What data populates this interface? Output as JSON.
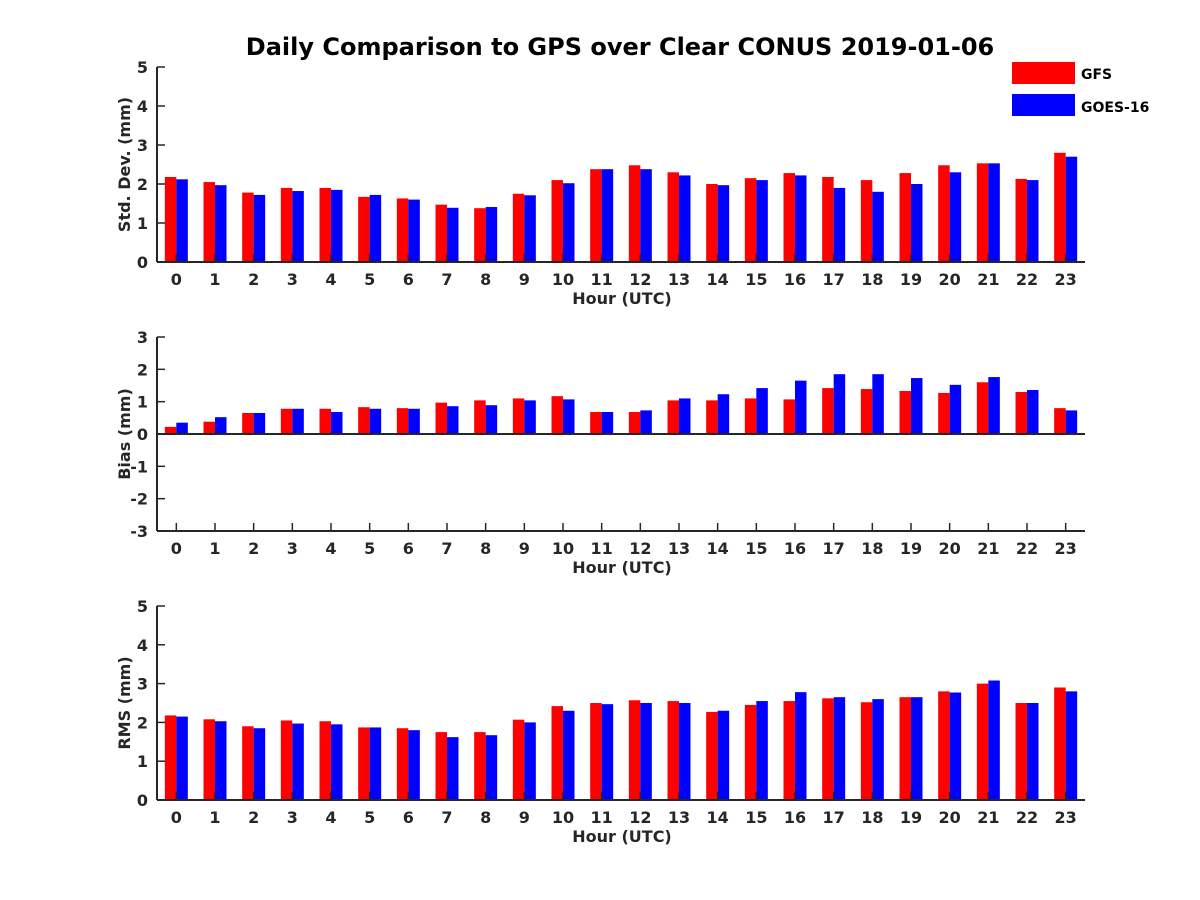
{
  "title": "Daily Comparison to GPS over Clear CONUS 2019-01-06",
  "legend": [
    {
      "label": "GFS",
      "color": "#ff0000"
    },
    {
      "label": "GOES-16",
      "color": "#0000ff"
    }
  ],
  "chart_data": [
    {
      "type": "bar",
      "title": "Daily Comparison to GPS over Clear CONUS 2019-01-06",
      "xlabel": "Hour (UTC)",
      "ylabel": "Std. Dev. (mm)",
      "ylim": [
        0,
        5
      ],
      "yticks": [
        "0",
        "1",
        "2",
        "3",
        "4",
        "5"
      ],
      "categories": [
        "0",
        "1",
        "2",
        "3",
        "4",
        "5",
        "6",
        "7",
        "8",
        "9",
        "10",
        "11",
        "12",
        "13",
        "14",
        "15",
        "16",
        "17",
        "18",
        "19",
        "20",
        "21",
        "22",
        "23"
      ],
      "series": [
        {
          "name": "GFS",
          "values": [
            2.18,
            2.05,
            1.78,
            1.9,
            1.9,
            1.67,
            1.63,
            1.47,
            1.38,
            1.75,
            2.1,
            2.38,
            2.48,
            2.3,
            2.0,
            2.15,
            2.28,
            2.18,
            2.1,
            2.28,
            2.48,
            2.53,
            2.13,
            2.8
          ]
        },
        {
          "name": "GOES-16",
          "values": [
            2.12,
            1.97,
            1.72,
            1.82,
            1.85,
            1.72,
            1.6,
            1.39,
            1.41,
            1.71,
            2.02,
            2.38,
            2.38,
            2.22,
            1.97,
            2.1,
            2.22,
            1.9,
            1.8,
            2.0,
            2.3,
            2.53,
            2.1,
            2.7
          ]
        }
      ]
    },
    {
      "type": "bar",
      "xlabel": "Hour (UTC)",
      "ylabel": "Bias (mm)",
      "ylim": [
        -3,
        3
      ],
      "yticks": [
        "-3",
        "-2",
        "-1",
        "0",
        "1",
        "2",
        "3"
      ],
      "categories": [
        "0",
        "1",
        "2",
        "3",
        "4",
        "5",
        "6",
        "7",
        "8",
        "9",
        "10",
        "11",
        "12",
        "13",
        "14",
        "15",
        "16",
        "17",
        "18",
        "19",
        "20",
        "21",
        "22",
        "23"
      ],
      "series": [
        {
          "name": "GFS",
          "values": [
            0.22,
            0.38,
            0.65,
            0.78,
            0.78,
            0.83,
            0.8,
            0.97,
            1.04,
            1.1,
            1.17,
            0.68,
            0.68,
            1.04,
            1.04,
            1.1,
            1.07,
            1.42,
            1.39,
            1.33,
            1.27,
            1.6,
            1.3,
            0.8
          ]
        },
        {
          "name": "GOES-16",
          "values": [
            0.35,
            0.52,
            0.65,
            0.78,
            0.68,
            0.78,
            0.78,
            0.86,
            0.89,
            1.04,
            1.07,
            0.68,
            0.73,
            1.1,
            1.23,
            1.42,
            1.65,
            1.85,
            1.85,
            1.73,
            1.52,
            1.76,
            1.36,
            0.73
          ]
        }
      ]
    },
    {
      "type": "bar",
      "xlabel": "Hour (UTC)",
      "ylabel": "RMS (mm)",
      "ylim": [
        0,
        5
      ],
      "yticks": [
        "0",
        "1",
        "2",
        "3",
        "4",
        "5"
      ],
      "categories": [
        "0",
        "1",
        "2",
        "3",
        "4",
        "5",
        "6",
        "7",
        "8",
        "9",
        "10",
        "11",
        "12",
        "13",
        "14",
        "15",
        "16",
        "17",
        "18",
        "19",
        "20",
        "21",
        "22",
        "23"
      ],
      "series": [
        {
          "name": "GFS",
          "values": [
            2.18,
            2.08,
            1.9,
            2.05,
            2.03,
            1.87,
            1.85,
            1.75,
            1.75,
            2.07,
            2.42,
            2.5,
            2.57,
            2.55,
            2.27,
            2.45,
            2.55,
            2.62,
            2.52,
            2.65,
            2.8,
            3.0,
            2.5,
            2.9
          ]
        },
        {
          "name": "GOES-16",
          "values": [
            2.15,
            2.03,
            1.85,
            1.97,
            1.95,
            1.87,
            1.8,
            1.62,
            1.67,
            2.0,
            2.3,
            2.47,
            2.5,
            2.5,
            2.3,
            2.55,
            2.78,
            2.65,
            2.6,
            2.65,
            2.77,
            3.08,
            2.5,
            2.8
          ]
        }
      ]
    }
  ]
}
